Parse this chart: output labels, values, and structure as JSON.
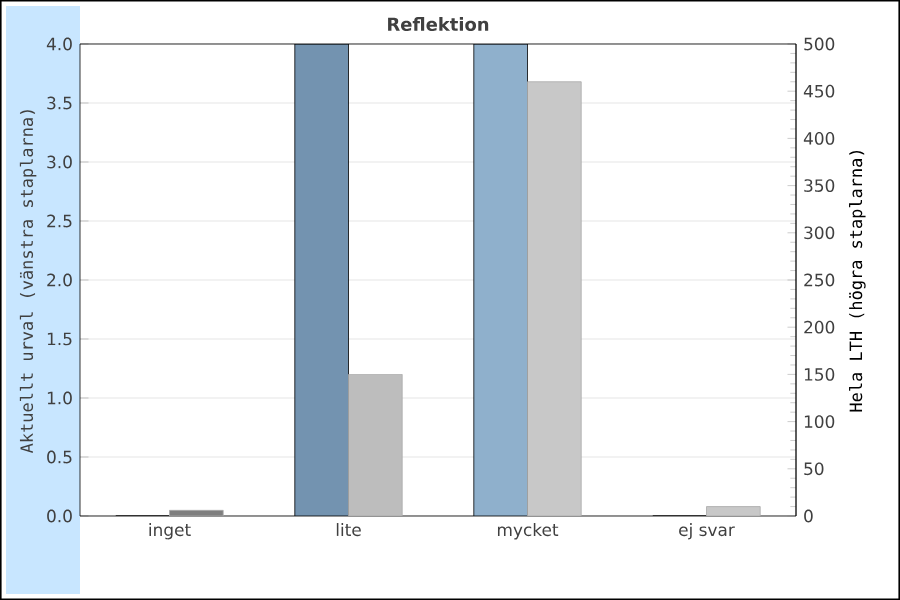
{
  "chart_data": {
    "type": "bar",
    "title": "Reflektion",
    "categories": [
      "inget",
      "lite",
      "mycket",
      "ej svar"
    ],
    "series": [
      {
        "axis": "y",
        "colors": [
          "#7393b0",
          "#7393b0",
          "#8fb0cc",
          "#8fb0cc"
        ],
        "values": [
          0,
          4,
          4,
          0
        ]
      },
      {
        "axis": "y2",
        "colors": [
          "#7f7f7f",
          "#bdbdbd",
          "#c8c8c8",
          "#c8c8c8"
        ],
        "values": [
          6,
          150,
          460,
          10
        ]
      }
    ],
    "ylabel": "Aktuellt urval (vänstra staplarna)",
    "y2label": "Hela LTH (högra staplarna)",
    "ylim": [
      0,
      4
    ],
    "yticks": [
      {
        "value": 0,
        "label": "0.0"
      },
      0.5,
      {
        "value": 1,
        "label": "1.0"
      },
      1.5,
      {
        "value": 2,
        "label": "2.0"
      },
      2.5,
      {
        "value": 3,
        "label": "3.0"
      },
      3.5,
      {
        "value": 4,
        "label": "4.0"
      }
    ],
    "y2lim": [
      0,
      500
    ],
    "y2ticks": [
      0,
      50,
      100,
      150,
      200,
      250,
      300,
      350,
      400,
      450,
      500
    ],
    "grid": "y"
  }
}
